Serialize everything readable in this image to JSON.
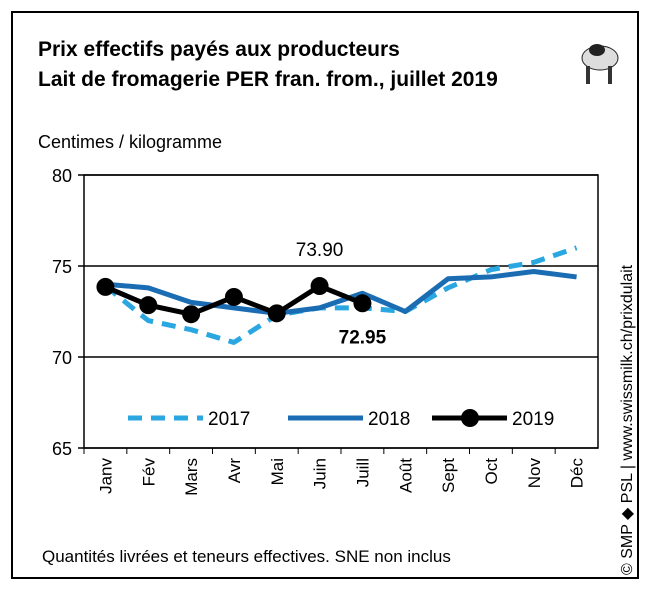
{
  "chart_data": {
    "type": "line",
    "title": "Prix effectifs payés aux producteurs",
    "subtitle": "Lait de fromagerie PER fran. from., juillet 2019",
    "y_label": "Centimes / kilogramme",
    "footer": "Quantités livrées et teneurs effectives.  SNE non inclus",
    "source": "© SMP ◆ PSL | www.swissmilk.ch/prixdulait",
    "categories": [
      "Janv",
      "Fév",
      "Mars",
      "Avr",
      "Mai",
      "Juin",
      "Juill",
      "Août",
      "Sept",
      "Oct",
      "Nov",
      "Déc"
    ],
    "ylim": [
      65,
      80
    ],
    "yticks": [
      65,
      70,
      75,
      80
    ],
    "grid": true,
    "series": [
      {
        "name": "2017",
        "color": "#2aa7e0",
        "dashed": true,
        "values": [
          73.9,
          72.0,
          71.5,
          70.8,
          72.3,
          72.7,
          72.7,
          72.5,
          73.8,
          74.8,
          75.2,
          76.0
        ]
      },
      {
        "name": "2018",
        "color": "#1b6db3",
        "values": [
          74.0,
          73.8,
          73.0,
          72.7,
          72.4,
          72.7,
          73.5,
          72.5,
          74.3,
          74.4,
          74.7,
          74.4
        ]
      },
      {
        "name": "2019",
        "color": "#000000",
        "markers": true,
        "values": [
          73.85,
          72.85,
          72.35,
          73.3,
          72.4,
          73.9,
          72.95,
          null,
          null,
          null,
          null,
          null
        ],
        "value_labels": [
          null,
          null,
          null,
          null,
          null,
          "73.90",
          "72.95",
          null,
          null,
          null,
          null,
          null
        ]
      }
    ]
  }
}
